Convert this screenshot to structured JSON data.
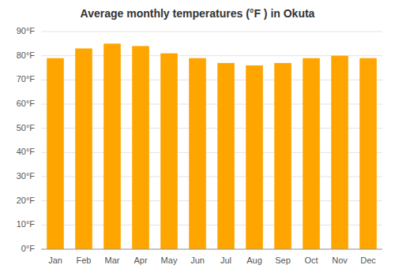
{
  "chart_data": {
    "type": "bar",
    "title": "Average monthly temperatures (°F ) in Okuta",
    "categories": [
      "Jan",
      "Feb",
      "Mar",
      "Apr",
      "May",
      "Jun",
      "Jul",
      "Aug",
      "Sep",
      "Oct",
      "Nov",
      "Dec"
    ],
    "values": [
      79,
      83,
      85,
      84,
      81,
      79,
      77,
      76,
      77,
      79,
      80,
      79
    ],
    "color": "#FFA500",
    "ylim": [
      0,
      90
    ],
    "yticks": [
      {
        "value": 0,
        "label": "0°F"
      },
      {
        "value": 10,
        "label": "10°F"
      },
      {
        "value": 20,
        "label": "20°F"
      },
      {
        "value": 30,
        "label": "30°F"
      },
      {
        "value": 40,
        "label": "40°F"
      },
      {
        "value": 50,
        "label": "50°F"
      },
      {
        "value": 60,
        "label": "60°F"
      },
      {
        "value": 70,
        "label": "70°F"
      },
      {
        "value": 80,
        "label": "80°F"
      },
      {
        "value": 90,
        "label": "90°F"
      }
    ],
    "grid": true
  }
}
